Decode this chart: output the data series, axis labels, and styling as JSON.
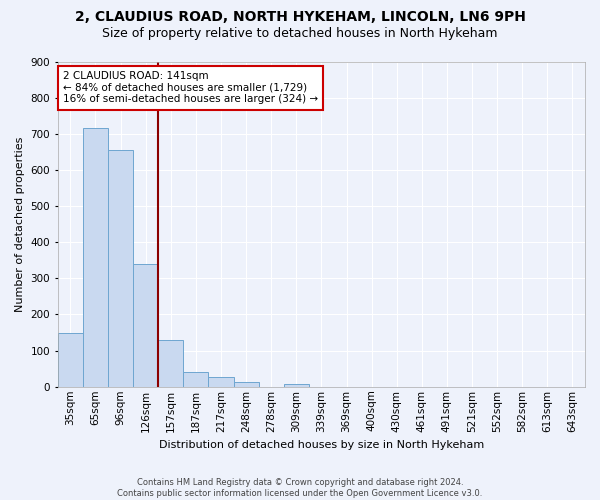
{
  "title1": "2, CLAUDIUS ROAD, NORTH HYKEHAM, LINCOLN, LN6 9PH",
  "title2": "Size of property relative to detached houses in North Hykeham",
  "xlabel": "Distribution of detached houses by size in North Hykeham",
  "ylabel": "Number of detached properties",
  "footnote": "Contains HM Land Registry data © Crown copyright and database right 2024.\nContains public sector information licensed under the Open Government Licence v3.0.",
  "bin_labels": [
    "35sqm",
    "65sqm",
    "96sqm",
    "126sqm",
    "157sqm",
    "187sqm",
    "217sqm",
    "248sqm",
    "278sqm",
    "309sqm",
    "339sqm",
    "369sqm",
    "400sqm",
    "430sqm",
    "461sqm",
    "491sqm",
    "521sqm",
    "552sqm",
    "582sqm",
    "613sqm",
    "643sqm"
  ],
  "bar_values": [
    150,
    715,
    655,
    340,
    130,
    42,
    28,
    12,
    0,
    8,
    0,
    0,
    0,
    0,
    0,
    0,
    0,
    0,
    0,
    0,
    0
  ],
  "bar_color": "#c9d9f0",
  "bar_edge_color": "#6ea6d0",
  "vline_color": "#8b0000",
  "annotation_text": "2 CLAUDIUS ROAD: 141sqm\n← 84% of detached houses are smaller (1,729)\n16% of semi-detached houses are larger (324) →",
  "annotation_box_color": "white",
  "annotation_box_edge_color": "#cc0000",
  "ylim": [
    0,
    900
  ],
  "yticks": [
    0,
    100,
    200,
    300,
    400,
    500,
    600,
    700,
    800,
    900
  ],
  "bg_color": "#eef2fb",
  "grid_color": "white",
  "title1_fontsize": 10,
  "title2_fontsize": 9,
  "axis_fontsize": 8,
  "tick_fontsize": 7.5
}
